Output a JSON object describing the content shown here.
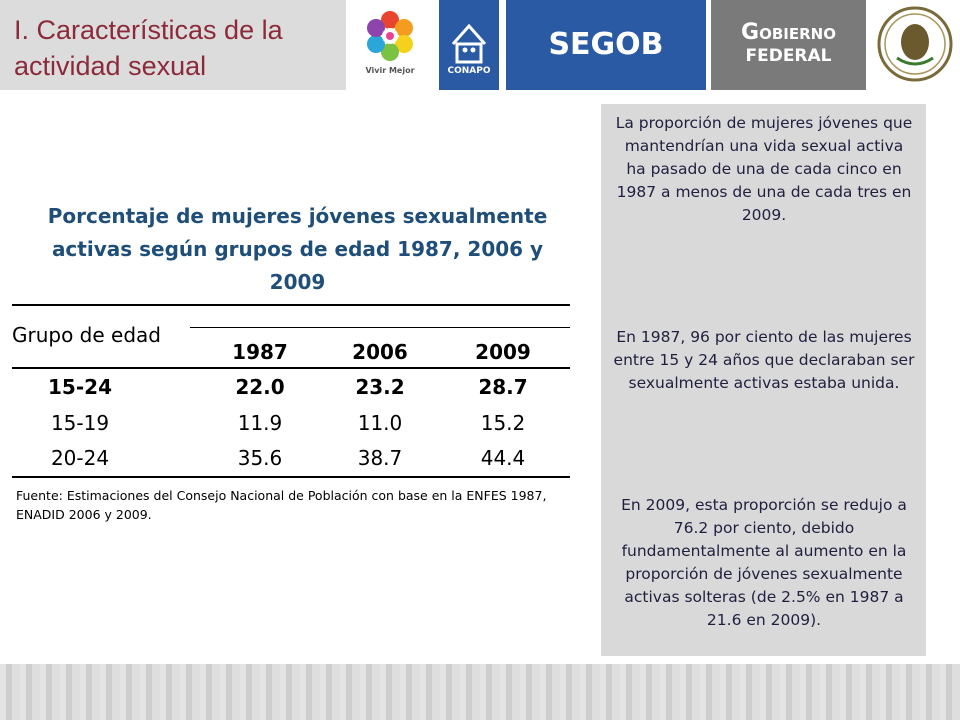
{
  "header": {
    "title_line1": "I. Características de la",
    "title_line2": "actividad sexual",
    "logos": {
      "vivir_mejor": "Vivir Mejor",
      "conapo": "CONAPO",
      "segob": "SEGOB",
      "gobierno_line1": "Gobierno",
      "gobierno_line2": "Federal"
    }
  },
  "table": {
    "title_line1": "Porcentaje de mujeres jóvenes sexualmente",
    "title_line2": "activas según grupos de edad 1987, 2006 y",
    "title_line3": "2009",
    "row_header": "Grupo de edad",
    "columns": [
      "1987",
      "2006",
      "2009"
    ],
    "rows": [
      {
        "label": "15-24",
        "values": [
          "22.0",
          "23.2",
          "28.7"
        ]
      },
      {
        "label": "15-19",
        "values": [
          "11.9",
          "11.0",
          "15.2"
        ]
      },
      {
        "label": "20-24",
        "values": [
          "35.6",
          "38.7",
          "44.4"
        ]
      }
    ],
    "source_line1": "Fuente: Estimaciones del Consejo Nacional de Población con base en la ENFES 1987,",
    "source_line2": "ENADID 2006 y 2009."
  },
  "panel": {
    "p1": "La proporción de mujeres jóvenes que mantendrían una vida sexual activa ha pasado de una de cada cinco en 1987 a menos de una de cada tres en 2009.",
    "p2": "En 1987, 96 por ciento de las mujeres entre 15 y 24 años que declaraban ser sexualmente activas estaba unida.",
    "p3": "En 2009, esta proporción se redujo a 76.2 por ciento, debido fundamentalmente al aumento en la proporción de jóvenes sexualmente activas solteras (de 2.5% en 1987 a 21.6 en 2009)."
  },
  "colors": {
    "title_red": "#8b2a3a",
    "table_title_blue": "#1f4e79",
    "segob_blue": "#2a5aa4",
    "gobierno_gray": "#7a7a7a"
  }
}
